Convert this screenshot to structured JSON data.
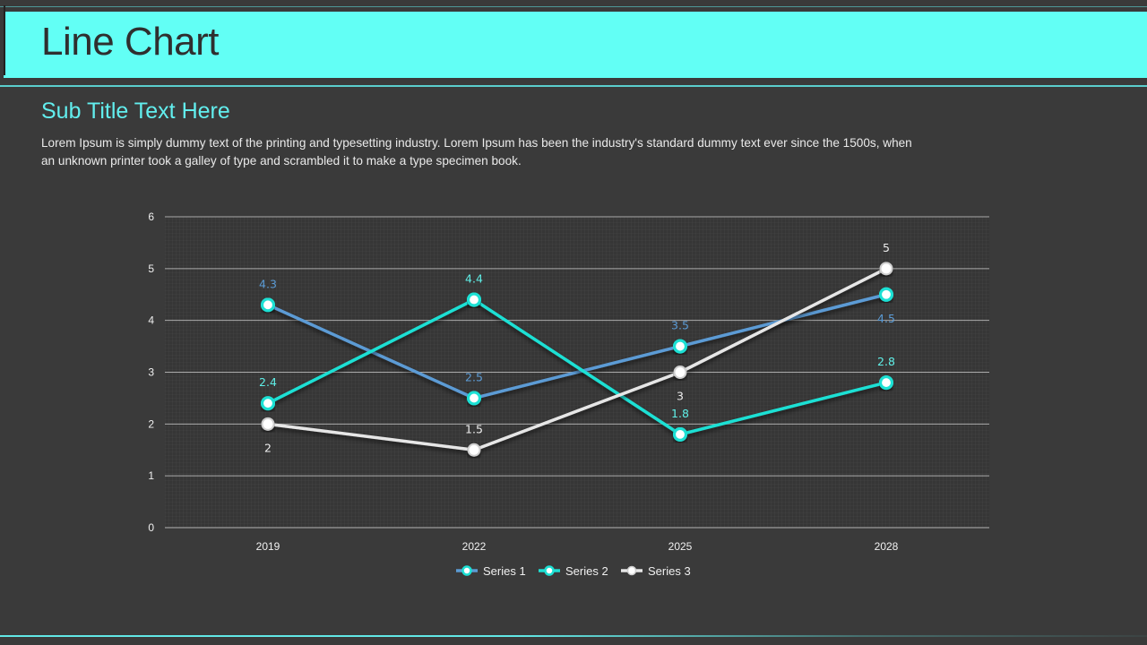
{
  "slide": {
    "title": "Line Chart",
    "subtitle": "Sub Title Text Here",
    "body": "Lorem Ipsum is simply dummy text of the printing and typesetting industry. Lorem Ipsum has been the industry's standard dummy text ever since the 1500s, when an unknown printer took a galley of type and scrambled it to make a type specimen book."
  },
  "chart_data": {
    "type": "line",
    "title": "",
    "xlabel": "",
    "ylabel": "",
    "categories": [
      "2019",
      "2022",
      "2025",
      "2028"
    ],
    "ylim": [
      0,
      6
    ],
    "yticks": [
      0,
      1,
      2,
      3,
      4,
      5,
      6
    ],
    "grid": true,
    "legend_position": "bottom",
    "series": [
      {
        "name": "Series 1",
        "color": "#5b9bd5",
        "label_color": "#5b9bd5",
        "values": [
          4.3,
          2.5,
          3.5,
          4.5
        ],
        "labels": [
          "4.3",
          "2.5",
          "3.5",
          "4.5"
        ],
        "label_pos": [
          "above",
          "above",
          "above",
          "below"
        ]
      },
      {
        "name": "Series 2",
        "color": "#1de0d4",
        "label_color": "#5ff0e8",
        "values": [
          2.4,
          4.4,
          1.8,
          2.8
        ],
        "labels": [
          "2.4",
          "4.4",
          "1.8",
          "2.8"
        ],
        "label_pos": [
          "above",
          "above",
          "above",
          "above"
        ]
      },
      {
        "name": "Series 3",
        "color": "#e6e6e6",
        "label_color": "#eeeeee",
        "values": [
          2,
          1.5,
          3,
          5
        ],
        "labels": [
          "2",
          "1.5",
          "3",
          "5"
        ],
        "label_pos": [
          "below",
          "above",
          "below",
          "above"
        ]
      }
    ]
  }
}
